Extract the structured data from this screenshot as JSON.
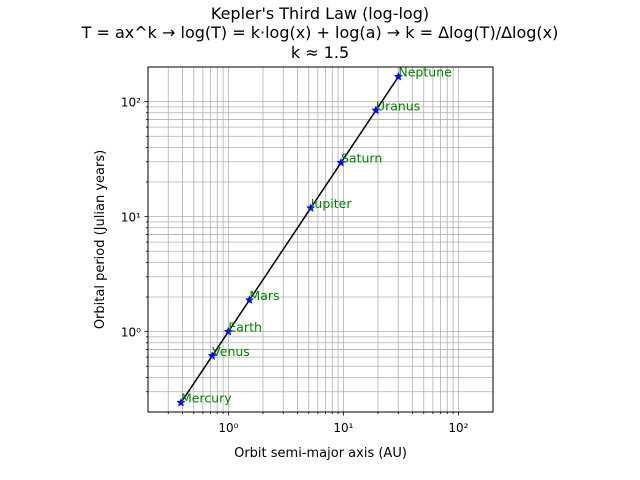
{
  "chart_data": {
    "type": "line",
    "title": [
      "Kepler's Third Law (log-log)",
      "T = ax^k → log(T) = k·log(x) + log(a) → k = Δlog(T)/Δlog(x)",
      "k ≈ 1.5"
    ],
    "xlabel": "Orbit semi-major axis (AU)",
    "ylabel": "Orbital period (Julian years)",
    "xscale": "log",
    "yscale": "log",
    "xlim": [
      0.2,
      200
    ],
    "ylim": [
      0.2,
      200
    ],
    "x_ticks": [
      1,
      10,
      100
    ],
    "y_ticks": [
      1,
      10,
      100
    ],
    "x_tick_labels": [
      "10⁰",
      "10¹",
      "10²"
    ],
    "y_tick_labels": [
      "10⁰",
      "10¹",
      "10²"
    ],
    "grid": "major and minor",
    "line_color": "#000000",
    "marker": "star",
    "marker_color": "#0000ff",
    "label_color": "#008000",
    "points": [
      {
        "label": "Mercury",
        "x": 0.387,
        "y": 0.241
      },
      {
        "label": "Venus",
        "x": 0.723,
        "y": 0.615
      },
      {
        "label": "Earth",
        "x": 1.0,
        "y": 1.0
      },
      {
        "label": "Mars",
        "x": 1.524,
        "y": 1.881
      },
      {
        "label": "Jupiter",
        "x": 5.203,
        "y": 11.86
      },
      {
        "label": "Saturn",
        "x": 9.537,
        "y": 29.45
      },
      {
        "label": "Uranus",
        "x": 19.19,
        "y": 84.02
      },
      {
        "label": "Neptune",
        "x": 30.07,
        "y": 164.8
      }
    ]
  }
}
